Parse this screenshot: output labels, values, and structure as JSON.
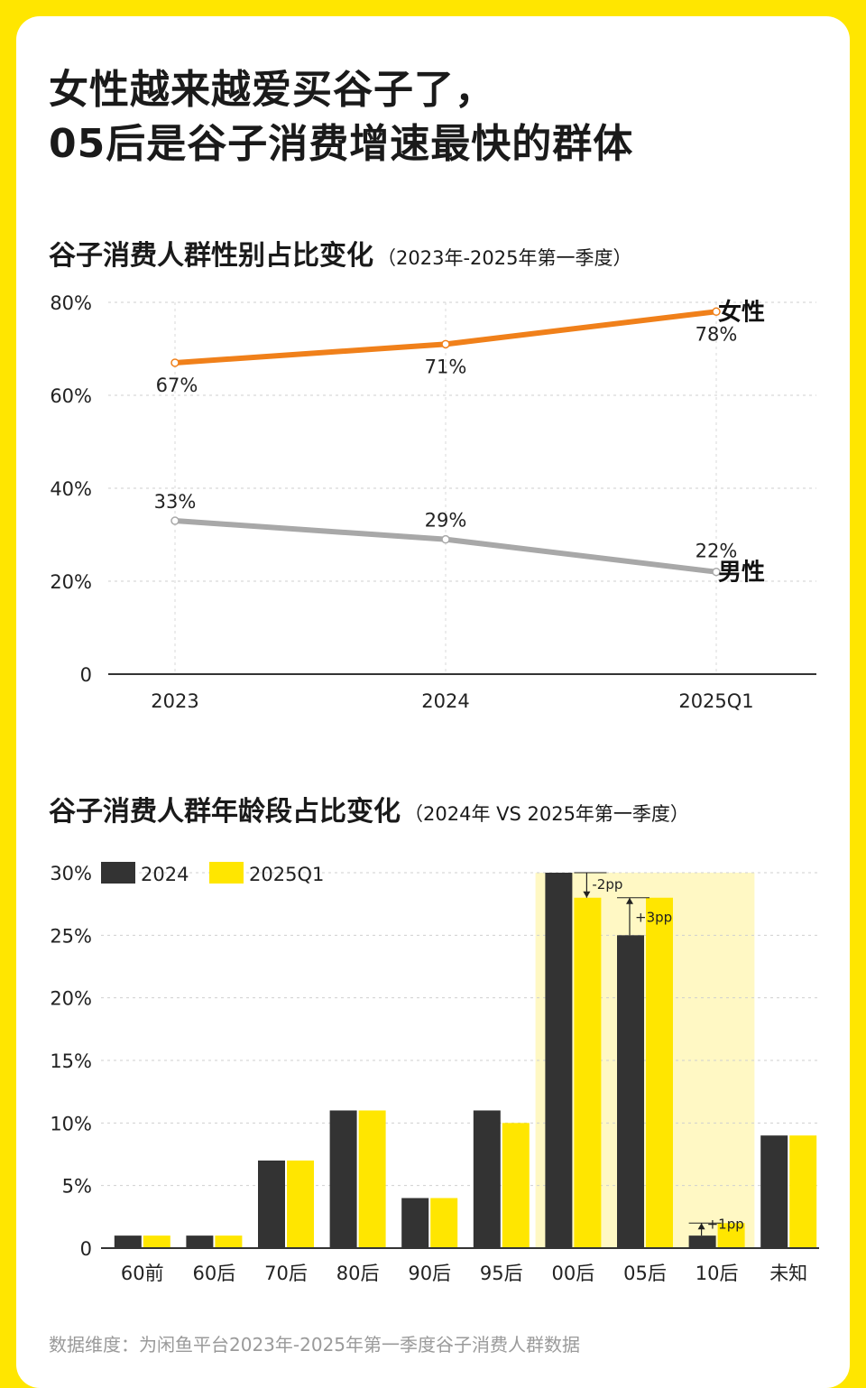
{
  "headline": {
    "line1": "女性越来越爱买谷子了，",
    "line2": "05后是谷子消费增速最快的群体"
  },
  "colors": {
    "background": "#FFE600",
    "female": "#F0801A",
    "male": "#A8A8A8",
    "bar_2024": "#333333",
    "bar_2025": "#FFE600",
    "highlight": "#FFF8C4"
  },
  "footnote": "数据维度：为闲鱼平台2023年-2025年第一季度谷子消费人群数据",
  "chart_data": [
    {
      "type": "line",
      "title": "谷子消费人群性别占比变化",
      "subtitle": "（2023年-2025年第一季度）",
      "x": [
        "2023",
        "2024",
        "2025Q1"
      ],
      "ylim": [
        0,
        80
      ],
      "yticks": [
        0,
        20,
        40,
        60,
        80
      ],
      "ytick_labels": [
        "0",
        "20%",
        "40%",
        "60%",
        "80%"
      ],
      "grid": true,
      "series": [
        {
          "name": "女性",
          "values": [
            67,
            71,
            78
          ],
          "labels": [
            "67%",
            "71%",
            "78%"
          ]
        },
        {
          "name": "男性",
          "values": [
            33,
            29,
            22
          ],
          "labels": [
            "33%",
            "29%",
            "22%"
          ]
        }
      ]
    },
    {
      "type": "bar",
      "title": "谷子消费人群年龄段占比变化",
      "subtitle": "（2024年 VS 2025年第一季度）",
      "categories": [
        "60前",
        "60后",
        "70后",
        "80后",
        "90后",
        "95后",
        "00后",
        "05后",
        "10后",
        "未知"
      ],
      "ylim": [
        0,
        30
      ],
      "yticks": [
        0,
        5,
        10,
        15,
        20,
        25,
        30
      ],
      "ytick_labels": [
        "0",
        "5%",
        "10%",
        "15%",
        "20%",
        "25%",
        "30%"
      ],
      "legend_position": "top-left",
      "grid": true,
      "highlight_categories": [
        "00后",
        "05后",
        "10后"
      ],
      "series": [
        {
          "name": "2024",
          "values": [
            1,
            1,
            7,
            11,
            4,
            11,
            30,
            25,
            1,
            9
          ]
        },
        {
          "name": "2025Q1",
          "values": [
            1,
            1,
            7,
            11,
            4,
            10,
            28,
            28,
            2,
            9
          ]
        }
      ],
      "annotations": [
        {
          "category": "00后",
          "text": "-2pp",
          "from": 30,
          "to": 28
        },
        {
          "category": "05后",
          "text": "+3pp",
          "from": 25,
          "to": 28
        },
        {
          "category": "10后",
          "text": "+1pp",
          "from": 1,
          "to": 2
        }
      ]
    }
  ]
}
